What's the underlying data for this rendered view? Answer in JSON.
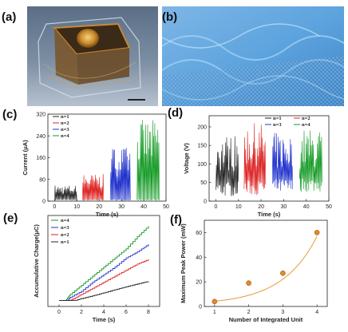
{
  "panels": {
    "a": "(a)",
    "b": "(b)",
    "c": "(c)",
    "d": "(d)",
    "e": "(e)",
    "f": "(f)"
  },
  "colors": {
    "n1": "#222222",
    "n2": "#dd2222",
    "n3": "#2233cc",
    "n4": "#119922",
    "fit": "#e89a3a",
    "marker": "#e8862a"
  },
  "chart_data": [
    {
      "panel": "c",
      "type": "line",
      "xlabel": "Time (s)",
      "ylabel": "Current (μA)",
      "xlim": [
        -3,
        50
      ],
      "ylim": [
        0,
        320
      ],
      "xticks": [
        0,
        10,
        20,
        30,
        40,
        50
      ],
      "yticks": [
        0,
        80,
        160,
        240,
        320
      ],
      "series": [
        {
          "name": "n=1",
          "t_range": [
            0,
            10
          ],
          "peak": 60
        },
        {
          "name": "n=2",
          "t_range": [
            12.5,
            22
          ],
          "peak": 100
        },
        {
          "name": "n=3",
          "t_range": [
            25,
            34
          ],
          "peak": 200
        },
        {
          "name": "n=4",
          "t_range": [
            37,
            47
          ],
          "peak": 300
        }
      ]
    },
    {
      "panel": "d",
      "type": "line",
      "xlabel": "Time (s)",
      "ylabel": "Voltage (V)",
      "xlim": [
        -3,
        50
      ],
      "ylim": [
        0,
        230
      ],
      "xticks": [
        0,
        10,
        20,
        30,
        40,
        50
      ],
      "yticks": [
        0,
        50,
        100,
        150,
        200
      ],
      "series": [
        {
          "name": "n=1",
          "t_range": [
            0,
            10
          ],
          "peak": 180
        },
        {
          "name": "n=2",
          "t_range": [
            12.5,
            22
          ],
          "peak": 210
        },
        {
          "name": "n=3",
          "t_range": [
            25,
            34
          ],
          "peak": 185
        },
        {
          "name": "n=4",
          "t_range": [
            37,
            47
          ],
          "peak": 195
        }
      ]
    },
    {
      "panel": "e",
      "type": "line",
      "xlabel": "Time (s)",
      "ylabel": "Accumulative Charge(μC)",
      "xlim": [
        -1,
        9
      ],
      "ylim": [
        -2,
        28
      ],
      "xticks": [
        0,
        2,
        4,
        6,
        8
      ],
      "yticks": [],
      "series": [
        {
          "name": "n=4",
          "t": [
            0,
            0.6,
            1,
            2,
            3,
            4,
            5,
            6,
            7,
            8
          ],
          "y": [
            0,
            0,
            2,
            5,
            8,
            11,
            14,
            17,
            21,
            24.5
          ]
        },
        {
          "name": "n=3",
          "t": [
            0,
            0.8,
            1,
            2,
            3,
            4,
            5,
            6,
            7,
            8
          ],
          "y": [
            0,
            0,
            1,
            3,
            6,
            8.5,
            11,
            14,
            16,
            18.5
          ]
        },
        {
          "name": "n=2",
          "t": [
            0,
            1,
            1.3,
            2,
            3,
            4,
            5,
            6,
            7,
            8
          ],
          "y": [
            0,
            0,
            0.5,
            2,
            4,
            6,
            8,
            10,
            12,
            13.5
          ]
        },
        {
          "name": "n=1",
          "t": [
            0,
            1.5,
            2,
            3,
            4,
            5,
            6,
            7,
            8
          ],
          "y": [
            0,
            0,
            0.6,
            1.5,
            2.5,
            3.5,
            4.5,
            5.4,
            6.3
          ]
        }
      ]
    },
    {
      "panel": "f",
      "type": "scatter",
      "xlabel": "Number of Integrated Unit",
      "ylabel": "Maximum Peak Power (mW)",
      "xlim": [
        0.7,
        4.3
      ],
      "ylim": [
        0,
        70
      ],
      "xticks": [
        1,
        2,
        3,
        4
      ],
      "yticks": [
        0,
        20,
        40,
        60
      ],
      "x": [
        1,
        2,
        3,
        4
      ],
      "y": [
        4,
        19,
        27,
        60
      ]
    }
  ]
}
